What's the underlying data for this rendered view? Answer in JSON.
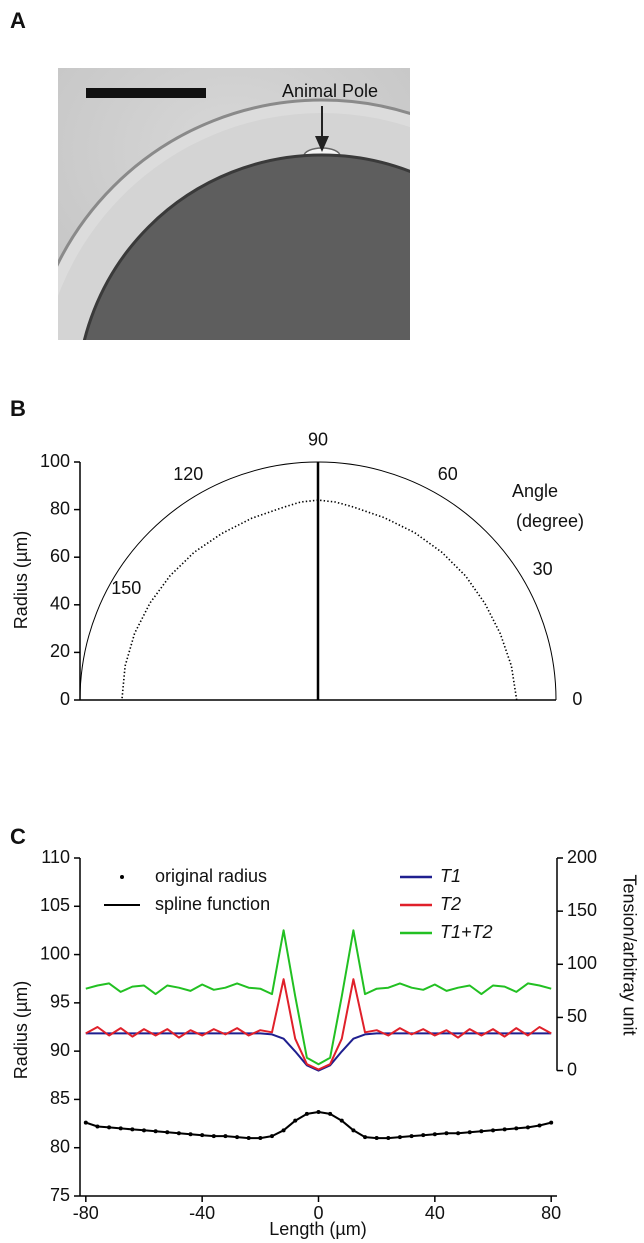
{
  "chart_data": [
    {
      "type": "image",
      "panel": "A",
      "annotation": "Animal Pole"
    },
    {
      "type": "polar",
      "panel": "B",
      "y_label": "Radius (µm)",
      "angle_label": [
        "Angle",
        "(degree)"
      ],
      "ylim": [
        0,
        100
      ],
      "yticks": [
        0,
        20,
        40,
        60,
        80,
        100
      ],
      "angle_lim": [
        0,
        180
      ],
      "angle_ticks": [
        0,
        30,
        60,
        90,
        120,
        150
      ],
      "series": [
        {
          "color": "#000000",
          "theta": [
            0,
            10,
            20,
            30,
            40,
            50,
            60,
            70,
            80,
            85,
            90,
            95,
            100,
            110,
            120,
            130,
            140,
            150,
            160,
            170,
            180
          ],
          "values": [
            83.5,
            82.5,
            81.5,
            81,
            81,
            81,
            81.2,
            81.5,
            82.5,
            83.5,
            84,
            83.5,
            82.3,
            81.3,
            80.8,
            81,
            81.2,
            81.5,
            82,
            82.3,
            82.4
          ]
        }
      ]
    },
    {
      "type": "line",
      "panel": "C",
      "x_label": "Length (µm)",
      "y_label": "Radius (µm)",
      "y2_label": "Tension/arbitray unit",
      "xlim": [
        -82,
        82
      ],
      "xticks": [
        -80,
        -40,
        0,
        40,
        80
      ],
      "ylim": [
        75,
        110
      ],
      "yticks": [
        75,
        80,
        85,
        90,
        95,
        100,
        105,
        110
      ],
      "y2lim": [
        -118,
        200
      ],
      "y2ticks": [
        0,
        50,
        100,
        150,
        200
      ],
      "x": [
        -80,
        -76,
        -72,
        -68,
        -64,
        -60,
        -56,
        -52,
        -48,
        -44,
        -40,
        -36,
        -32,
        -28,
        -24,
        -20,
        -16,
        -12,
        -8,
        -4,
        0,
        4,
        8,
        12,
        16,
        20,
        24,
        28,
        32,
        36,
        40,
        44,
        48,
        52,
        56,
        60,
        64,
        68,
        72,
        76,
        80
      ],
      "series": [
        {
          "name": "original radius",
          "color": "#000000",
          "marker": "dot",
          "values": [
            82.6,
            82.2,
            82.1,
            82.0,
            81.9,
            81.8,
            81.7,
            81.6,
            81.5,
            81.4,
            81.3,
            81.2,
            81.2,
            81.1,
            81.0,
            81.0,
            81.2,
            81.8,
            82.8,
            83.5,
            83.7,
            83.5,
            82.8,
            81.8,
            81.1,
            81.0,
            81.0,
            81.1,
            81.2,
            81.3,
            81.4,
            81.5,
            81.5,
            81.6,
            81.7,
            81.8,
            81.9,
            82.0,
            82.1,
            82.3,
            82.6
          ]
        },
        {
          "name": "spline function",
          "color": "#000000",
          "marker": "line",
          "values": [
            82.6,
            82.2,
            82.1,
            82.0,
            81.9,
            81.8,
            81.7,
            81.6,
            81.5,
            81.4,
            81.3,
            81.2,
            81.2,
            81.1,
            81.0,
            81.0,
            81.2,
            81.8,
            82.8,
            83.5,
            83.7,
            83.5,
            82.8,
            81.8,
            81.1,
            81.0,
            81.0,
            81.1,
            81.2,
            81.3,
            81.4,
            81.5,
            81.5,
            81.6,
            81.7,
            81.8,
            81.9,
            82.0,
            82.1,
            82.3,
            82.6
          ]
        },
        {
          "name": "T1",
          "color": "#1f1f8f",
          "marker": "line",
          "axis": "y2",
          "values": [
            35,
            35,
            35,
            35,
            35,
            35,
            35,
            35,
            35,
            35,
            35,
            35,
            35,
            35,
            35,
            35,
            34,
            30,
            18,
            5,
            0,
            5,
            18,
            30,
            34,
            35,
            35,
            35,
            35,
            35,
            35,
            35,
            35,
            35,
            35,
            35,
            35,
            35,
            35,
            35,
            35
          ]
        },
        {
          "name": "T2",
          "color": "#e0202a",
          "marker": "line",
          "axis": "y2",
          "values": [
            35,
            41,
            33,
            40,
            32,
            39,
            33,
            39,
            31,
            38,
            33,
            39,
            34,
            40,
            33,
            38,
            36,
            86,
            30,
            6,
            1,
            6,
            30,
            86,
            36,
            38,
            33,
            40,
            34,
            39,
            33,
            38,
            31,
            39,
            33,
            39,
            32,
            40,
            33,
            41,
            35
          ]
        },
        {
          "name": "T1+T2",
          "color": "#22c022",
          "marker": "line",
          "axis": "y2",
          "values": [
            77,
            80,
            82,
            74,
            79,
            80,
            72,
            80,
            78,
            75,
            81,
            76,
            78,
            82,
            78,
            77,
            72,
            132,
            70,
            12,
            6,
            12,
            70,
            132,
            72,
            77,
            78,
            82,
            78,
            76,
            81,
            75,
            78,
            80,
            72,
            80,
            79,
            74,
            82,
            80,
            77
          ]
        }
      ]
    }
  ]
}
